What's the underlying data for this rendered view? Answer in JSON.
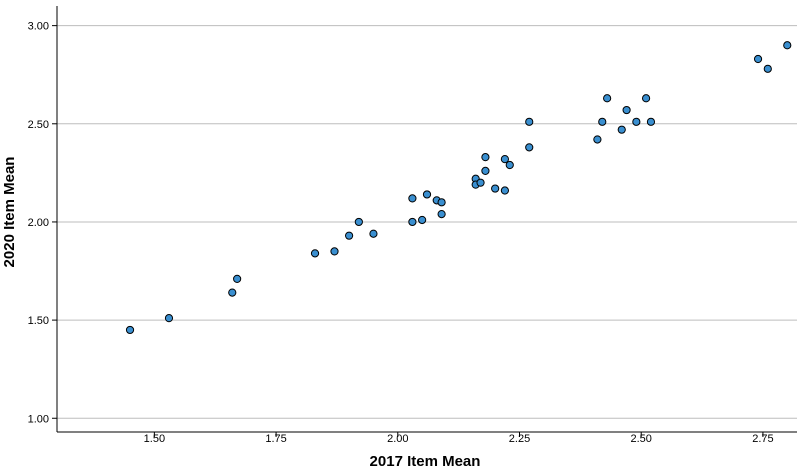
{
  "chart_data": {
    "type": "scatter",
    "xlabel": "2017 Item Mean",
    "ylabel": "2020 Item Mean",
    "xlim": [
      1.3,
      2.82
    ],
    "ylim": [
      0.93,
      3.1
    ],
    "xticks": [
      "1.50",
      "1.75",
      "2.00",
      "2.25",
      "2.50",
      "2.75"
    ],
    "yticks": [
      "1.00",
      "1.50",
      "2.00",
      "2.50",
      "3.00"
    ],
    "grid": "horizontal",
    "legend": "none",
    "marker_fill": "#3a8fd0",
    "marker_stroke": "#000000",
    "gridline_color": "#bdbdbd",
    "points": [
      {
        "x": 1.45,
        "y": 1.45
      },
      {
        "x": 1.53,
        "y": 1.51
      },
      {
        "x": 1.66,
        "y": 1.64
      },
      {
        "x": 1.67,
        "y": 1.71
      },
      {
        "x": 1.83,
        "y": 1.84
      },
      {
        "x": 1.87,
        "y": 1.85
      },
      {
        "x": 1.9,
        "y": 1.93
      },
      {
        "x": 1.92,
        "y": 2.0
      },
      {
        "x": 1.95,
        "y": 1.94
      },
      {
        "x": 2.03,
        "y": 2.0
      },
      {
        "x": 2.03,
        "y": 2.12
      },
      {
        "x": 2.05,
        "y": 2.01
      },
      {
        "x": 2.06,
        "y": 2.14
      },
      {
        "x": 2.08,
        "y": 2.11
      },
      {
        "x": 2.09,
        "y": 2.1
      },
      {
        "x": 2.09,
        "y": 2.04
      },
      {
        "x": 2.16,
        "y": 2.22
      },
      {
        "x": 2.16,
        "y": 2.19
      },
      {
        "x": 2.17,
        "y": 2.2
      },
      {
        "x": 2.18,
        "y": 2.26
      },
      {
        "x": 2.18,
        "y": 2.33
      },
      {
        "x": 2.2,
        "y": 2.17
      },
      {
        "x": 2.22,
        "y": 2.16
      },
      {
        "x": 2.22,
        "y": 2.32
      },
      {
        "x": 2.23,
        "y": 2.29
      },
      {
        "x": 2.27,
        "y": 2.38
      },
      {
        "x": 2.27,
        "y": 2.51
      },
      {
        "x": 2.41,
        "y": 2.42
      },
      {
        "x": 2.42,
        "y": 2.51
      },
      {
        "x": 2.43,
        "y": 2.63
      },
      {
        "x": 2.46,
        "y": 2.47
      },
      {
        "x": 2.47,
        "y": 2.57
      },
      {
        "x": 2.49,
        "y": 2.51
      },
      {
        "x": 2.51,
        "y": 2.63
      },
      {
        "x": 2.52,
        "y": 2.51
      },
      {
        "x": 2.74,
        "y": 2.83
      },
      {
        "x": 2.76,
        "y": 2.78
      },
      {
        "x": 2.8,
        "y": 2.9
      }
    ]
  }
}
